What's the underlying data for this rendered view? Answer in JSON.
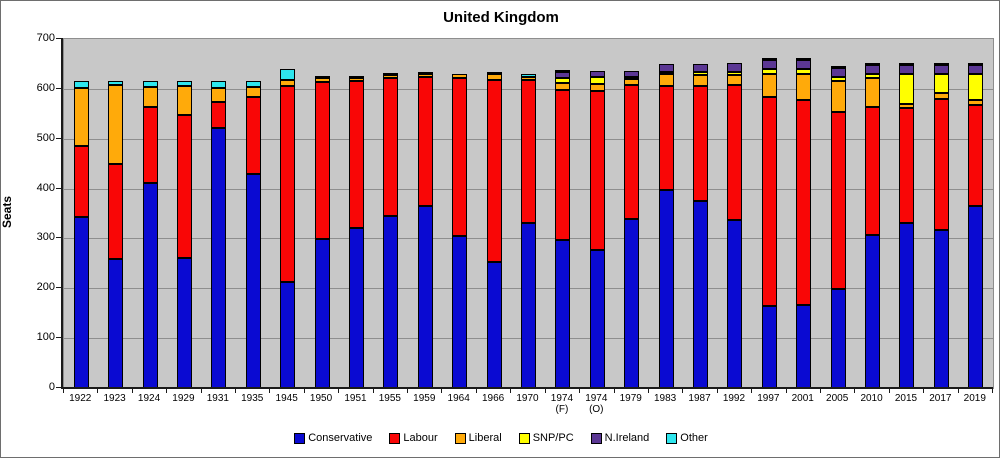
{
  "title": "United Kingdom",
  "y_axis": {
    "label": "Seats",
    "min": 0,
    "max": 700,
    "tick_interval": 100,
    "tick_labels": [
      "0",
      "100",
      "200",
      "300",
      "400",
      "500",
      "600",
      "700"
    ]
  },
  "legend_position": "bottom-center",
  "colors": {
    "plot_background": "#c8c8c8",
    "gridline": "#8e8e8e",
    "axis": "#1a1a1a",
    "bar_border": "#000000"
  },
  "chart_data": {
    "type": "bar",
    "stacked": true,
    "title": "United Kingdom",
    "xlabel": "",
    "ylabel": "Seats",
    "ylim": [
      0,
      700
    ],
    "grid": true,
    "legend_position": "bottom",
    "categories": [
      "1922",
      "1923",
      "1924",
      "1929",
      "1931",
      "1935",
      "1945",
      "1950",
      "1951",
      "1955",
      "1959",
      "1964",
      "1966",
      "1970",
      "1974\n(F)",
      "1974\n(O)",
      "1979",
      "1983",
      "1987",
      "1992",
      "1997",
      "2001",
      "2005",
      "2010",
      "2015",
      "2017",
      "2019"
    ],
    "series": [
      {
        "name": "Conservative",
        "color": "#0a0ad2",
        "values": [
          344,
          258,
          412,
          260,
          522,
          429,
          213,
          298,
          321,
          345,
          365,
          304,
          253,
          330,
          297,
          277,
          339,
          397,
          376,
          336,
          165,
          166,
          198,
          306,
          330,
          317,
          365
        ]
      },
      {
        "name": "Labour",
        "color": "#f90606",
        "values": [
          142,
          191,
          151,
          287,
          52,
          154,
          393,
          315,
          295,
          277,
          258,
          317,
          364,
          288,
          301,
          319,
          269,
          209,
          229,
          271,
          418,
          412,
          355,
          258,
          232,
          262,
          202
        ]
      },
      {
        "name": "Liberal",
        "color": "#ffaa0a",
        "values": [
          115,
          158,
          40,
          59,
          27,
          21,
          12,
          9,
          6,
          6,
          6,
          9,
          12,
          6,
          14,
          13,
          11,
          23,
          22,
          20,
          46,
          52,
          62,
          57,
          8,
          12,
          11
        ]
      },
      {
        "name": "SNP/PC",
        "color": "#ffff00",
        "values": [
          0,
          0,
          0,
          0,
          0,
          0,
          0,
          0,
          0,
          0,
          0,
          0,
          0,
          0,
          9,
          14,
          4,
          4,
          6,
          7,
          10,
          9,
          9,
          9,
          59,
          39,
          52
        ]
      },
      {
        "name": "N.Ireland",
        "color": "#5b3794",
        "values": [
          0,
          0,
          0,
          0,
          0,
          0,
          0,
          0,
          0,
          0,
          0,
          0,
          0,
          0,
          12,
          12,
          12,
          17,
          17,
          17,
          18,
          18,
          18,
          18,
          18,
          18,
          18
        ]
      },
      {
        "name": "Other",
        "color": "#2fe6ee",
        "values": [
          14,
          8,
          12,
          9,
          14,
          11,
          22,
          3,
          3,
          2,
          1,
          0,
          1,
          6,
          2,
          0,
          0,
          0,
          0,
          0,
          2,
          2,
          4,
          2,
          3,
          2,
          2
        ]
      }
    ]
  }
}
